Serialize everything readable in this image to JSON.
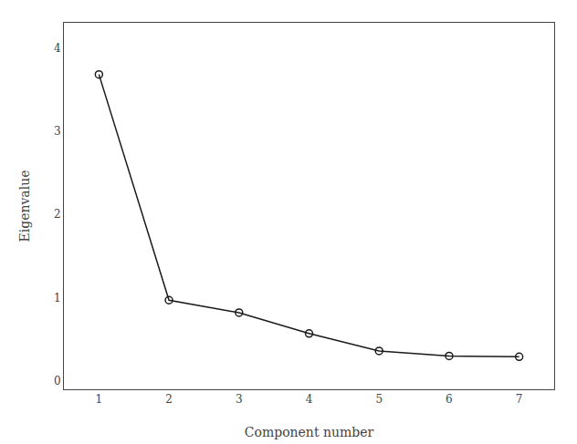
{
  "chart_data": {
    "type": "line",
    "x": [
      1,
      2,
      3,
      4,
      5,
      6,
      7
    ],
    "values": [
      3.68,
      0.97,
      0.82,
      0.57,
      0.36,
      0.3,
      0.29
    ],
    "xlabel": "Component number",
    "ylabel": "Eigenvalue",
    "xlim": [
      0.5,
      7.5
    ],
    "ylim": [
      -0.1,
      4.3
    ],
    "xticks": [
      1,
      2,
      3,
      4,
      5,
      6,
      7
    ],
    "yticks": [
      0,
      1,
      2,
      3,
      4
    ],
    "color": "#1a1a1a",
    "marker": "circle-open",
    "grid": false
  }
}
